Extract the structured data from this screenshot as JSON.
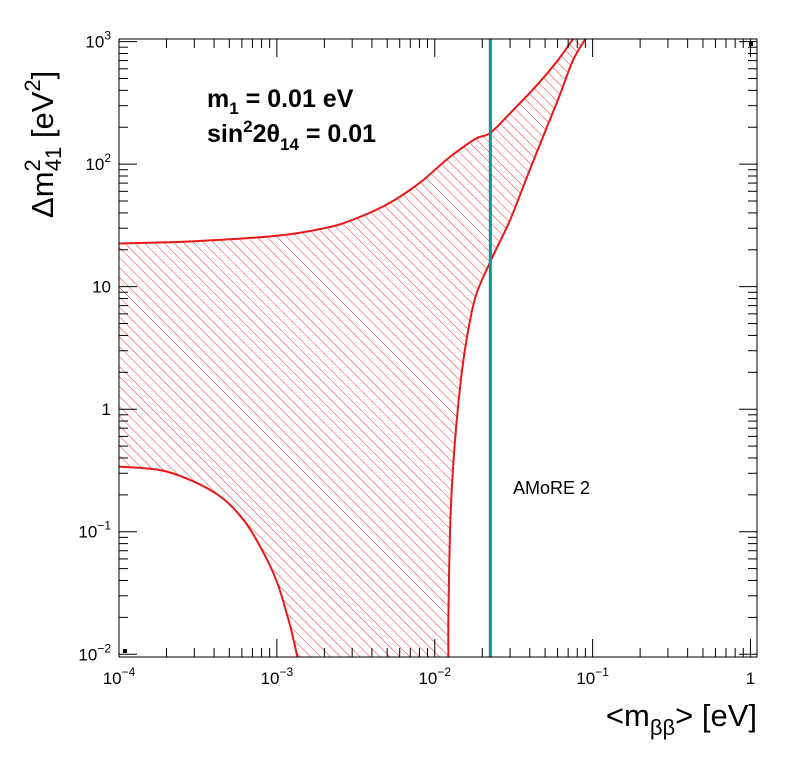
{
  "chart_data": {
    "type": "area",
    "xscale": "log",
    "yscale": "log",
    "xlim": [
      0.0001,
      1.1
    ],
    "ylim": [
      0.0095,
      1050
    ],
    "xlabel": {
      "prefix": "<m",
      "sub": "ββ",
      "suffix": "> [eV]"
    },
    "ylabel": {
      "prefix": "Δm",
      "sup": "2",
      "sub": "41",
      "suffix": " [eV",
      "sup2": "2",
      "close": "]"
    },
    "x_ticks": [
      {
        "value": 0.0001,
        "base": "10",
        "exp": "−4"
      },
      {
        "value": 0.001,
        "base": "10",
        "exp": "−3"
      },
      {
        "value": 0.01,
        "base": "10",
        "exp": "−2"
      },
      {
        "value": 0.1,
        "base": "10",
        "exp": "−1"
      },
      {
        "value": 1,
        "base": "1",
        "exp": ""
      }
    ],
    "y_ticks": [
      {
        "value": 0.01,
        "base": "10",
        "exp": "−2"
      },
      {
        "value": 0.1,
        "base": "10",
        "exp": "−1"
      },
      {
        "value": 1,
        "base": "1",
        "exp": ""
      },
      {
        "value": 10,
        "base": "10",
        "exp": ""
      },
      {
        "value": 100,
        "base": "10",
        "exp": "2"
      },
      {
        "value": 1000,
        "base": "10",
        "exp": "3"
      }
    ],
    "annotations": {
      "line1": {
        "prefix": "m",
        "sub": "1",
        "suffix": " = 0.01 eV"
      },
      "line2": {
        "prefix": "sin",
        "sup": "2",
        "mid": "2θ",
        "sub": "14",
        "suffix": " = 0.01"
      }
    },
    "vline": {
      "x": 0.0225,
      "label": "AMoRE 2",
      "color": "#00999a"
    },
    "band_color": "#e8191a",
    "upper_boundary": [
      [
        0.0001,
        22.5
      ],
      [
        0.0003,
        23.5
      ],
      [
        0.001,
        26
      ],
      [
        0.002,
        30
      ],
      [
        0.003,
        35
      ],
      [
        0.005,
        47
      ],
      [
        0.008,
        70
      ],
      [
        0.012,
        110
      ],
      [
        0.018,
        160
      ],
      [
        0.0225,
        180
      ],
      [
        0.03,
        260
      ],
      [
        0.045,
        450
      ],
      [
        0.06,
        700
      ],
      [
        0.075,
        1050
      ]
    ],
    "lower_boundary": [
      [
        0.0001,
        0.34
      ],
      [
        0.0002,
        0.31
      ],
      [
        0.0004,
        0.21
      ],
      [
        0.0006,
        0.13
      ],
      [
        0.0008,
        0.072
      ],
      [
        0.001,
        0.039
      ],
      [
        0.0012,
        0.018
      ],
      [
        0.00135,
        0.0095
      ]
    ],
    "right_boundary": [
      [
        0.0122,
        0.0095
      ],
      [
        0.0122,
        0.02
      ],
      [
        0.0125,
        0.1
      ],
      [
        0.013,
        0.3
      ],
      [
        0.014,
        1
      ],
      [
        0.0155,
        3
      ],
      [
        0.018,
        8
      ],
      [
        0.0225,
        16
      ],
      [
        0.03,
        35
      ],
      [
        0.04,
        90
      ],
      [
        0.06,
        330
      ],
      [
        0.075,
        700
      ],
      [
        0.09,
        1050
      ]
    ]
  }
}
